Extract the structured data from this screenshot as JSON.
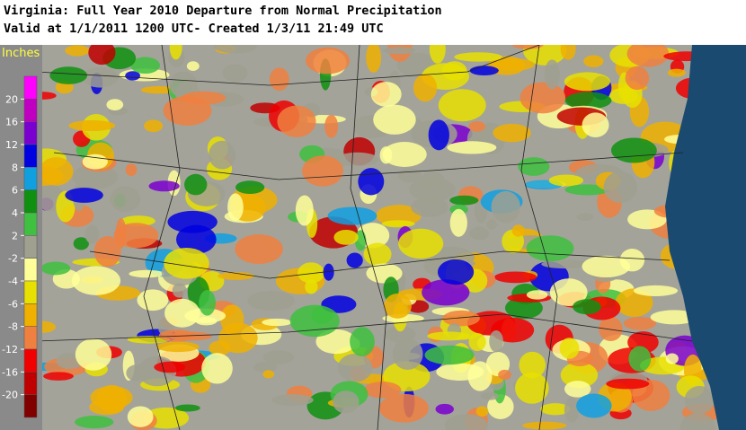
{
  "header": {
    "title": "Virginia: Full Year 2010 Departure from Normal Precipitation",
    "subtitle": "Valid at 1/1/2011 1200 UTC- Created 1/3/11 21:49 UTC"
  },
  "legend": {
    "unit": "Inches",
    "ticks": [
      20,
      16,
      12,
      8,
      6,
      4,
      2,
      -2,
      -4,
      -6,
      -8,
      -12,
      -16,
      -20
    ],
    "colors": [
      "#ff00ff",
      "#c000c0",
      "#7a00d0",
      "#0000e0",
      "#10a0e0",
      "#109010",
      "#40c040",
      "#a0a090",
      "#ffff99",
      "#e8e000",
      "#f0b000",
      "#f08040",
      "#f00000",
      "#c00000",
      "#800000"
    ]
  }
}
